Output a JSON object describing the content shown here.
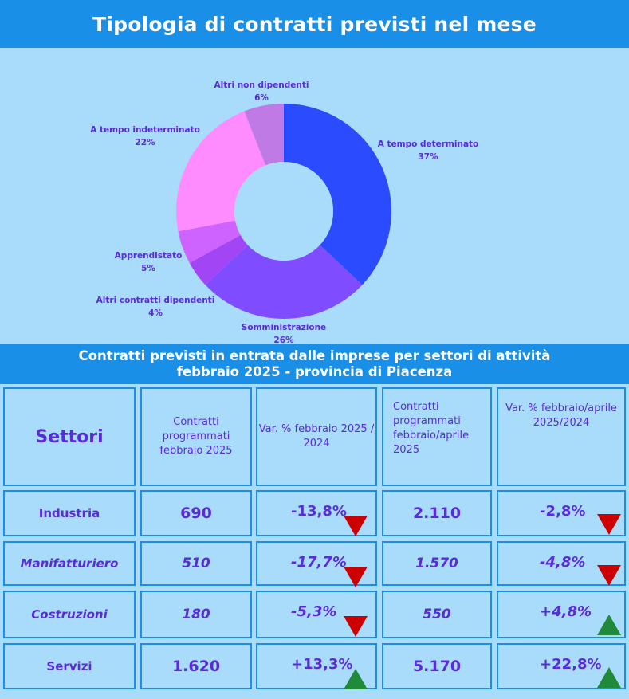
{
  "header": {
    "title": "Tipologia di contratti previsti nel mese"
  },
  "colors": {
    "banner": "#1a8fe8",
    "background": "#a9dbfb",
    "text": "#5a2bd9",
    "down_arrow": "#cc0000",
    "up_arrow": "#1e8a3a"
  },
  "chart_data": {
    "type": "pie",
    "variant": "donut",
    "slices": [
      {
        "label": "A tempo determinato",
        "pct_label": "37%",
        "value": 37,
        "color": "#2b4bff"
      },
      {
        "label": "Somministrazione",
        "pct_label": "26%",
        "value": 26,
        "color": "#7f4dff"
      },
      {
        "label": "Altri contratti dipendenti",
        "pct_label": "4%",
        "value": 4,
        "color": "#a145f5"
      },
      {
        "label": "Apprendistato",
        "pct_label": "5%",
        "value": 5,
        "color": "#cf63ff"
      },
      {
        "label": "A tempo indeterminato",
        "pct_label": "22%",
        "value": 22,
        "color": "#ff8cff"
      },
      {
        "label": "Altri non dipendenti",
        "pct_label": "6%",
        "value": 6,
        "color": "#c07ae6"
      }
    ]
  },
  "table": {
    "title_line1": "Contratti previsti in entrata dalle imprese per settori di attività",
    "title_line2": "febbraio 2025 - provincia di Piacenza",
    "headers": {
      "settori": "Settori",
      "col1": "Contratti programmati febbraio 2025",
      "col2": "Var. % febbraio 2025 / 2024",
      "col3": "Contratti programmati febbraio/aprile 2025",
      "col4": "Var. % febbraio/aprile 2025/2024"
    },
    "rows": [
      {
        "label": "Industria",
        "italic": false,
        "c1": "690",
        "c2": "-13,8%",
        "c2_trend": "down",
        "c3": "2.110",
        "c4": "-2,8%",
        "c4_trend": "down"
      },
      {
        "label": "Manifatturiero",
        "italic": true,
        "c1": "510",
        "c2": "-17,7%",
        "c2_trend": "down",
        "c3": "1.570",
        "c4": "-4,8%",
        "c4_trend": "down"
      },
      {
        "label": "Costruzioni",
        "italic": true,
        "c1": "180",
        "c2": "-5,3%",
        "c2_trend": "down",
        "c3": "550",
        "c4": "+4,8%",
        "c4_trend": "up"
      },
      {
        "label": "Servizi",
        "italic": false,
        "c1": "1.620",
        "c2": "+13,3%",
        "c2_trend": "up",
        "c3": "5.170",
        "c4": "+22,8%",
        "c4_trend": "up"
      }
    ]
  }
}
